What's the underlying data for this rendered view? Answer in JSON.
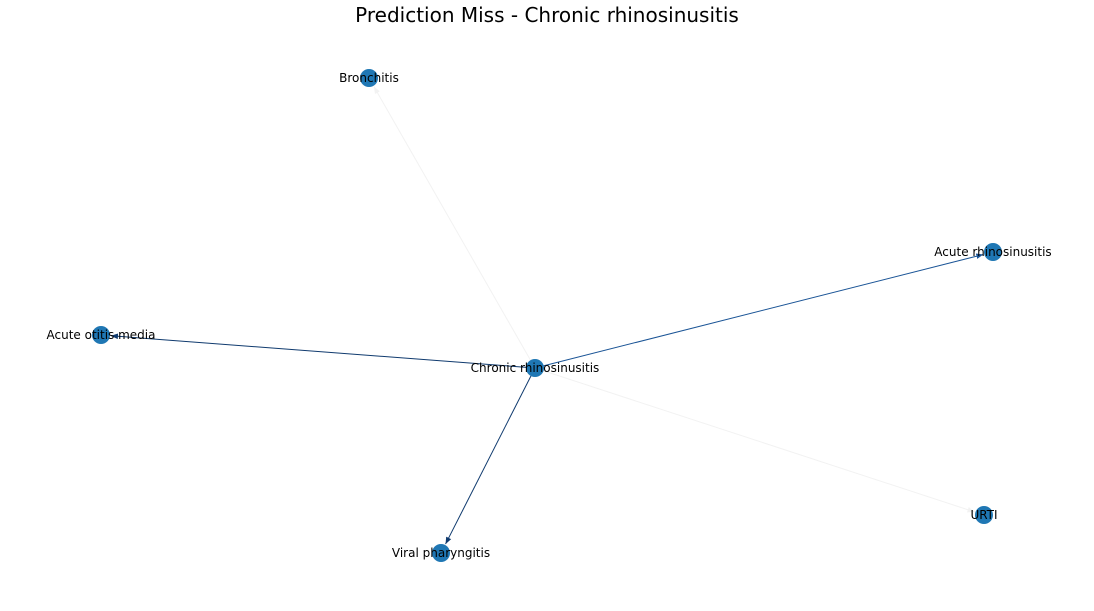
{
  "title": "Prediction Miss - Chronic rhinosinusitis",
  "graph": {
    "node_color": "#1f77b4",
    "nodes": [
      {
        "id": "chronic",
        "label": "Chronic rhinosinusitis"
      },
      {
        "id": "bronchitis",
        "label": "Bronchitis"
      },
      {
        "id": "acute_rhino",
        "label": "Acute rhinosinusitis"
      },
      {
        "id": "otitis",
        "label": "Acute otitis media"
      },
      {
        "id": "urti",
        "label": "URTI"
      },
      {
        "id": "viral",
        "label": "Viral pharyngitis"
      }
    ],
    "edges": [
      {
        "source": "chronic",
        "target": "bronchitis",
        "color": "#f2f2f2"
      },
      {
        "source": "chronic",
        "target": "urti",
        "color": "#f2f2f2"
      },
      {
        "source": "chronic",
        "target": "acute_rhino",
        "color": "#1a5496"
      },
      {
        "source": "chronic",
        "target": "otitis",
        "color": "#0f3a6e"
      },
      {
        "source": "chronic",
        "target": "viral",
        "color": "#0f3a6e"
      }
    ]
  }
}
